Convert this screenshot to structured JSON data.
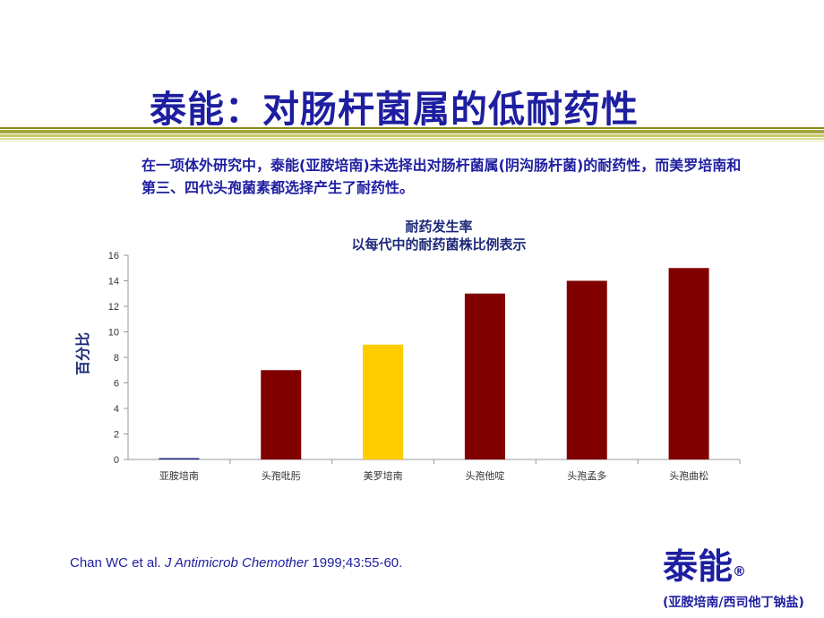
{
  "slide": {
    "title": "泰能：对肠杆菌属的低耐药性",
    "subtitle": "在一项体外研究中，泰能(亚胺培南)未选择出对肠杆菌属(阴沟肠杆菌)的耐药性，而美罗培南和第三、四代头孢菌素都选择产生了耐药性。",
    "citation": {
      "authors": "Chan WC et al. ",
      "journal": "J Antimicrob Chemother",
      "details": " 1999;43:55-60."
    },
    "brand": {
      "name": "泰能",
      "mark": "®",
      "generic": "(亚胺培南/西司他丁钠盐)"
    },
    "colors": {
      "title": "#1e1ea0",
      "rule_dark": "#8a8a1e",
      "rule_light": "#c8c864"
    }
  },
  "chart_data": {
    "type": "bar",
    "title_lines": [
      "耐药发生率",
      "以每代中的耐药菌株比例表示"
    ],
    "ylabel": "百分比",
    "xlabel": "",
    "categories": [
      "亚胺培南",
      "头孢吡肟",
      "美罗培南",
      "头孢他啶",
      "头孢孟多",
      "头孢曲松"
    ],
    "values": [
      0.1,
      7,
      9,
      13,
      14,
      15
    ],
    "bar_colors": [
      "#1a237e",
      "#800000",
      "#ffcc00",
      "#800000",
      "#800000",
      "#800000"
    ],
    "ylim": [
      0,
      16
    ],
    "yticks": [
      0,
      2,
      4,
      6,
      8,
      10,
      12,
      14,
      16
    ],
    "grid": false,
    "legend": "none"
  }
}
